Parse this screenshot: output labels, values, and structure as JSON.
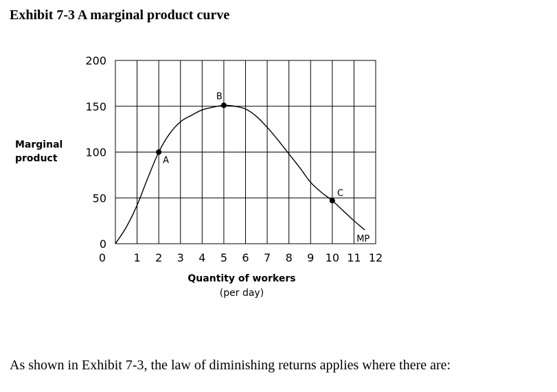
{
  "exhibit_title": "Exhibit 7-3 A marginal product curve",
  "question": "As shown in Exhibit 7-3, the law of diminishing returns applies where there are:",
  "chart_data": {
    "type": "line",
    "ylabel_line1": "Marginal",
    "ylabel_line2": "product",
    "xlabel": "Quantity of workers",
    "xlabel_sub": "(per day)",
    "x_ticks": [
      "0",
      "1",
      "2",
      "3",
      "4",
      "5",
      "6",
      "7",
      "8",
      "9",
      "10",
      "11",
      "12"
    ],
    "y_ticks": [
      "0",
      "50",
      "100",
      "150",
      "200"
    ],
    "xlim": [
      0,
      12
    ],
    "ylim": [
      0,
      200
    ],
    "grid": true,
    "series": [
      {
        "name": "MP",
        "x": [
          0,
          0.5,
          1,
          1.5,
          2,
          2.5,
          3,
          3.5,
          4,
          4.5,
          5,
          5.5,
          6,
          6.5,
          7,
          7.5,
          8,
          8.5,
          9,
          9.5,
          10,
          10.5,
          11,
          11.5
        ],
        "y": [
          0,
          18,
          42,
          72,
          100,
          120,
          133,
          140,
          146,
          149,
          151,
          150,
          147,
          139,
          127,
          113,
          98,
          83,
          67,
          56,
          47,
          36,
          25,
          15
        ]
      }
    ],
    "points": [
      {
        "label": "A",
        "x": 2,
        "y": 100
      },
      {
        "label": "B",
        "x": 5,
        "y": 151
      },
      {
        "label": "C",
        "x": 10,
        "y": 47
      }
    ]
  }
}
